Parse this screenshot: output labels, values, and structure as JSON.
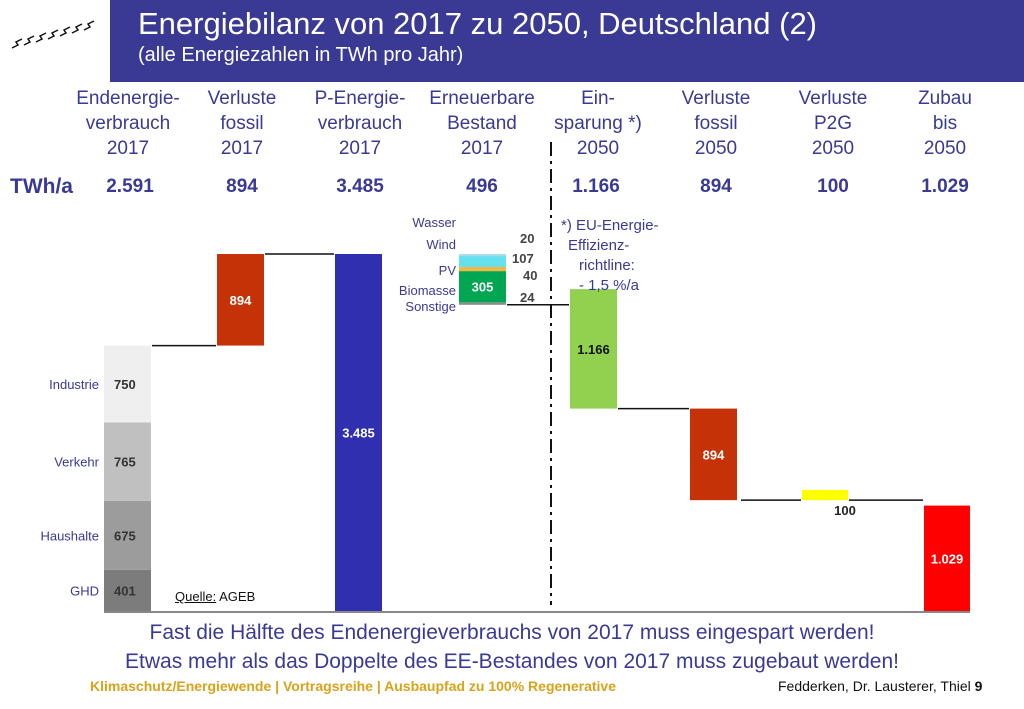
{
  "header": {
    "title": "Energiebilanz von 2017 zu 2050, Deutschland (2)",
    "subtitle": "(alle Energiezahlen in TWh pro Jahr)"
  },
  "columns": [
    {
      "label": "Endenergie-\nverbrauch\n2017",
      "total": "2.591"
    },
    {
      "label": "Verluste\nfossil\n2017",
      "total": "894"
    },
    {
      "label": "P-Energie-\nverbrauch\n2017",
      "total": "3.485"
    },
    {
      "label": "Erneuerbare\nBestand\n2017",
      "total": "496"
    },
    {
      "label": "Ein-\nsparung *)\n2050",
      "total": "1.166"
    },
    {
      "label": "Verluste\nfossil\n2050",
      "total": "894"
    },
    {
      "label": "Verluste\nP2G\n2050",
      "total": "100"
    },
    {
      "label": "Zubau\nbis\n2050",
      "total": "1.029"
    }
  ],
  "unit_label": "TWh/a",
  "chart_data": {
    "type": "bar",
    "subtype": "waterfall",
    "units": "TWh/a",
    "stacked_consumption_2017": [
      {
        "name": "Industrie",
        "value": 750,
        "color": "#efefef"
      },
      {
        "name": "Verkehr",
        "value": 765,
        "color": "#c0c0c0"
      },
      {
        "name": "Haushalte",
        "value": 675,
        "color": "#9c9c9c"
      },
      {
        "name": "GHD",
        "value": 401,
        "color": "#7c7c7c"
      }
    ],
    "steps": [
      {
        "name": "Verluste fossil 2017",
        "value": 894,
        "label": "894",
        "base": 2591,
        "color": "#c63208"
      },
      {
        "name": "P-Energieverbrauch 2017",
        "value": 3485,
        "label": "3.485",
        "base": 0,
        "color": "#2f2fb0"
      },
      {
        "name": "Einsparung 2050",
        "value": 1166,
        "label": "1.166",
        "base": 1976,
        "color": "#92d050"
      },
      {
        "name": "Verluste fossil 2050",
        "value": 894,
        "label": "894",
        "base": 1082,
        "color": "#c63208"
      },
      {
        "name": "Verluste P2G 2050",
        "value": 100,
        "label": "100",
        "base": 1082,
        "color": "#ffff00"
      },
      {
        "name": "Zubau bis 2050",
        "value": 1029,
        "label": "1.029",
        "base": 0,
        "color": "#ff0000"
      }
    ],
    "renewables_2017": {
      "base": 2989,
      "segments": [
        {
          "name": "Sonstige",
          "value": 24,
          "color": "#8c8c8c"
        },
        {
          "name": "Biomasse",
          "value": 305,
          "color": "#00a651"
        },
        {
          "name": "PV",
          "value": 40,
          "color": "#f5b840"
        },
        {
          "name": "Wind",
          "value": 107,
          "color": "#66e0ee"
        },
        {
          "name": "Wasser",
          "value": 20,
          "color": "#aadcec"
        }
      ]
    },
    "ylim": [
      0,
      3485
    ]
  },
  "annotation": "*) EU-Energie-\nEffizienz-\nrichtline:\n- 1,5 %/a",
  "source": {
    "prefix": "Quelle:",
    "text": "AGEB"
  },
  "footer": {
    "line1": "Fast die Hälfte des Endenergieverbrauchs von 2017 muss eingespart werden!",
    "line2": "Etwas mehr als das Doppelte des EE-Bestandes von 2017 muss zugebaut werden!",
    "left": "Klimaschutz/Energiewende | Vortragsreihe | Ausbaupfad zu 100% Regenerative",
    "right": "Fedderken, Dr. Lausterer, Thiel",
    "page": "9"
  },
  "colors": {
    "header": "#3a3a94",
    "text_blue": "#3a3a94",
    "footer_gold": "#d9a21b"
  }
}
